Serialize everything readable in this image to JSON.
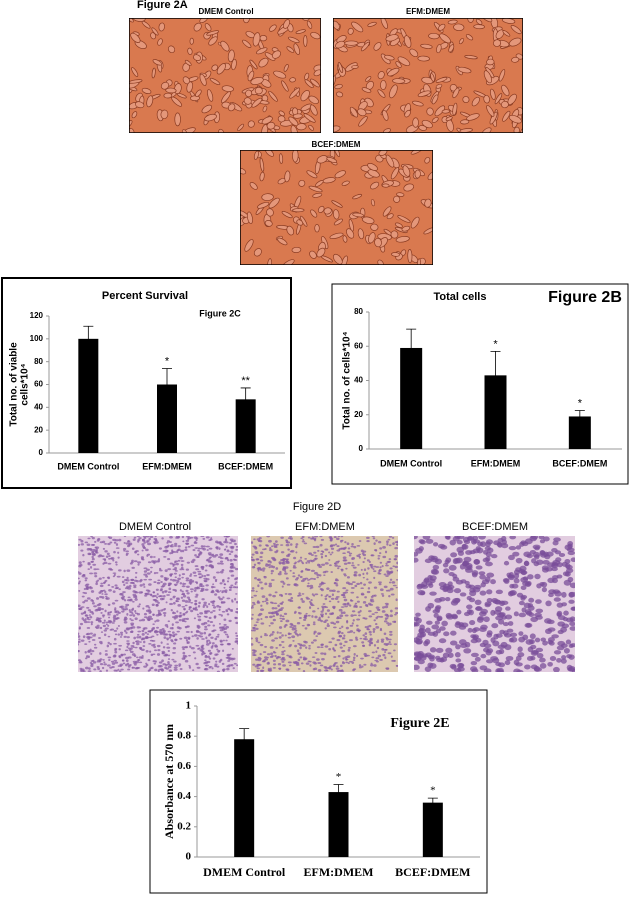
{
  "figure_2a": {
    "title": "Figure 2A",
    "images": [
      {
        "label": "DMEM Control"
      },
      {
        "label": "EFM:DMEM"
      },
      {
        "label": "BCEF:DMEM"
      }
    ]
  },
  "figure_2d": {
    "title": "Figure 2D",
    "images": [
      {
        "label": "DMEM Control"
      },
      {
        "label": "EFM:DMEM"
      },
      {
        "label": "BCEF:DMEM"
      }
    ]
  },
  "chart_data": [
    {
      "type": "bar",
      "title": "Percent Survival",
      "annotation": "Figure 2C",
      "ylabel": [
        "Total no. of viable",
        "cells*10⁴"
      ],
      "categories": [
        "DMEM Control",
        "EFM:DMEM",
        "BCEF:DMEM"
      ],
      "values": [
        100,
        60,
        47
      ],
      "errors": [
        11,
        14,
        10
      ],
      "significance": [
        null,
        "*",
        "**"
      ],
      "color": "#000000",
      "ylim": [
        0,
        120
      ],
      "yticks": [
        0,
        20,
        40,
        60,
        80,
        100,
        120
      ]
    },
    {
      "type": "bar",
      "title": "Total cells",
      "annotation": "Figure 2B",
      "ylabel": [
        "Total no. of cells*10⁴"
      ],
      "categories": [
        "DMEM Control",
        "EFM:DMEM",
        "BCEF:DMEM"
      ],
      "values": [
        59,
        43,
        19
      ],
      "errors": [
        11,
        14,
        3.5
      ],
      "significance": [
        null,
        "*",
        "*"
      ],
      "color": "#000000",
      "ylim": [
        0,
        80
      ],
      "yticks": [
        0,
        20,
        40,
        60,
        80
      ]
    },
    {
      "type": "bar",
      "annotation": "Figure 2E",
      "ylabel": [
        "Absorbance at 570 nm"
      ],
      "categories": [
        "DMEM Control",
        "EFM:DMEM",
        "BCEF:DMEM"
      ],
      "values": [
        0.78,
        0.43,
        0.36
      ],
      "errors": [
        0.07,
        0.05,
        0.03
      ],
      "significance": [
        null,
        "*",
        "*"
      ],
      "color": "#000000",
      "ylim": [
        0,
        1
      ],
      "yticks": [
        0,
        0.2,
        0.4,
        0.6,
        0.8,
        1
      ]
    }
  ]
}
